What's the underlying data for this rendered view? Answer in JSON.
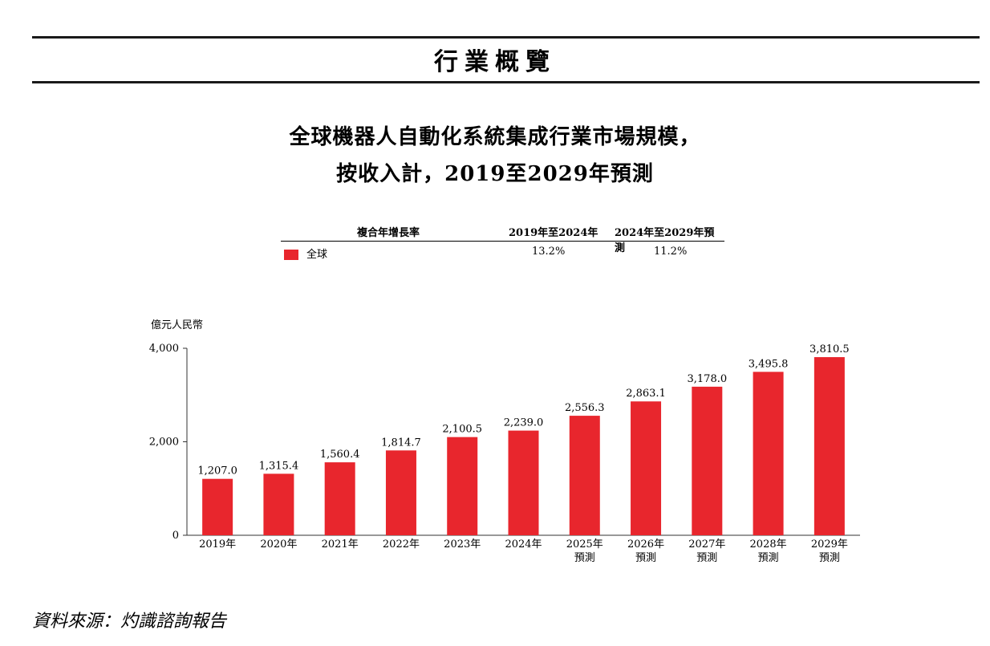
{
  "header": {
    "section_title": "行業概覽"
  },
  "chart_title": {
    "line1": "全球機器人自動化系統集成行業市場規模，",
    "line2": "按收入計，2019至2029年預測"
  },
  "cagr_table": {
    "header": [
      "複合年增長率",
      "2019年至2024年",
      "2024年至2029年預測"
    ],
    "rows": [
      {
        "label": "全球",
        "v1": "13.2%",
        "v2": "11.2%"
      }
    ]
  },
  "colors": {
    "bar": "#e8262d",
    "axis": "#333333"
  },
  "chart_data": {
    "type": "bar",
    "ylabel": "億元人民幣",
    "ylim": [
      0,
      4000
    ],
    "yticks": [
      "0",
      "2,000",
      "4,000"
    ],
    "categories": [
      [
        "2019年"
      ],
      [
        "2020年"
      ],
      [
        "2021年"
      ],
      [
        "2022年"
      ],
      [
        "2023年"
      ],
      [
        "2024年"
      ],
      [
        "2025年",
        "預測"
      ],
      [
        "2026年",
        "預測"
      ],
      [
        "2027年",
        "預測"
      ],
      [
        "2028年",
        "預測"
      ],
      [
        "2029年",
        "預測"
      ]
    ],
    "series": [
      {
        "name": "全球",
        "values": [
          1207.0,
          1315.4,
          1560.4,
          1814.7,
          2100.5,
          2239.0,
          2556.3,
          2863.1,
          3178.0,
          3495.8,
          3810.5
        ],
        "labels": [
          "1,207.0",
          "1,315.4",
          "1,560.4",
          "1,814.7",
          "2,100.5",
          "2,239.0",
          "2,556.3",
          "2,863.1",
          "3,178.0",
          "3,495.8",
          "3,810.5"
        ]
      }
    ]
  },
  "source": "資料來源：灼識諮詢報告"
}
